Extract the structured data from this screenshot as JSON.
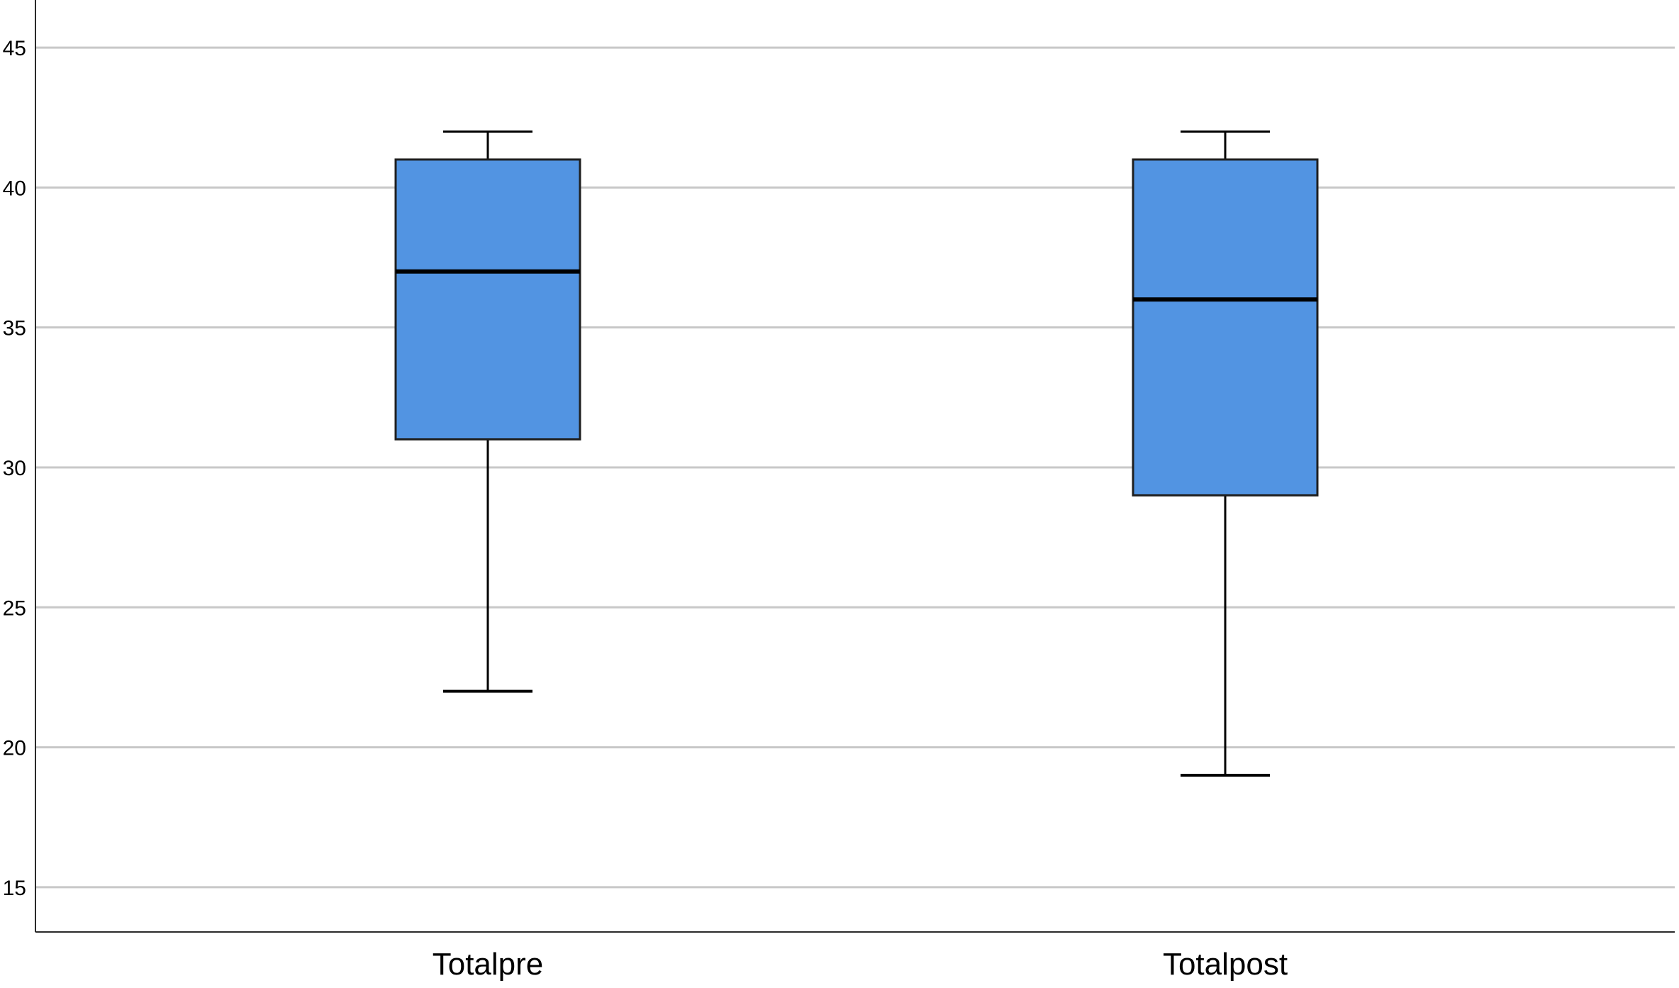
{
  "chart_data": {
    "type": "boxplot",
    "title": "",
    "xlabel": "",
    "ylabel": "",
    "ylim": [
      13.4,
      46.7
    ],
    "yticks": [
      15,
      20,
      25,
      30,
      35,
      40,
      45
    ],
    "grid": true,
    "box_color": "#5294E2",
    "categories": [
      "Totalpre",
      "Totalpost"
    ],
    "boxes": [
      {
        "category": "Totalpre",
        "whisker_low": 22,
        "q1": 31,
        "median": 37,
        "q3": 41,
        "whisker_high": 42
      },
      {
        "category": "Totalpost",
        "whisker_low": 19,
        "q1": 29,
        "median": 36,
        "q3": 41,
        "whisker_high": 42
      }
    ]
  }
}
